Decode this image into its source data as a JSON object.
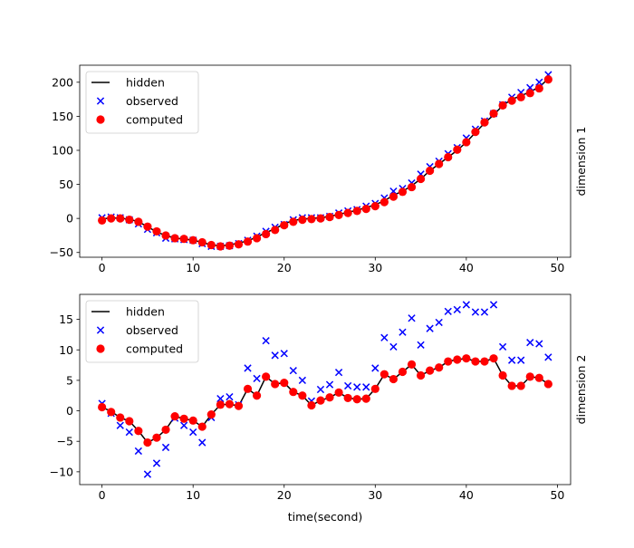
{
  "chart_data": [
    {
      "type": "scatter",
      "panel": "dimension 1",
      "ylabel": "dimension 1",
      "xlabel": "",
      "xlim": [
        -2.45,
        51.45
      ],
      "ylim": [
        -57,
        225
      ],
      "xticks": [
        0,
        10,
        20,
        30,
        40,
        50
      ],
      "yticks": [
        -50,
        0,
        50,
        100,
        150,
        200
      ],
      "legend": [
        "hidden",
        "observed",
        "computed"
      ],
      "legend_position": "upper left",
      "x": [
        0,
        1,
        2,
        3,
        4,
        5,
        6,
        7,
        8,
        9,
        10,
        11,
        12,
        13,
        14,
        15,
        16,
        17,
        18,
        19,
        20,
        21,
        22,
        23,
        24,
        25,
        26,
        27,
        28,
        29,
        30,
        31,
        32,
        33,
        34,
        35,
        36,
        37,
        38,
        39,
        40,
        41,
        42,
        43,
        44,
        45,
        46,
        47,
        48,
        49
      ],
      "series": [
        {
          "name": "hidden",
          "style": "line",
          "color": "#000000",
          "values": [
            -1,
            1,
            0,
            -1,
            -5,
            -12,
            -20,
            -25,
            -29,
            -30,
            -32,
            -35,
            -39,
            -40,
            -39,
            -36,
            -33,
            -27,
            -21,
            -15,
            -8,
            -3,
            -1,
            0,
            1,
            3,
            6,
            9,
            12,
            16,
            20,
            26,
            34,
            40,
            48,
            58,
            70,
            80,
            90,
            100,
            112,
            126,
            140,
            152,
            166,
            175,
            180,
            186,
            193,
            205
          ]
        },
        {
          "name": "observed",
          "style": "x",
          "color": "#0000ff",
          "values": [
            1,
            2,
            1,
            -2,
            -8,
            -16,
            -21,
            -29,
            -30,
            -31,
            -32,
            -37,
            -41,
            -41,
            -40,
            -37,
            -32,
            -26,
            -19,
            -13,
            -9,
            -2,
            1,
            1,
            1,
            3,
            8,
            11,
            13,
            18,
            22,
            30,
            40,
            44,
            52,
            65,
            76,
            84,
            95,
            104,
            118,
            131,
            143,
            154,
            167,
            178,
            185,
            192,
            200,
            211
          ]
        },
        {
          "name": "computed",
          "style": "o",
          "color": "#ff0000",
          "values": [
            -3,
            0,
            0,
            -2,
            -5,
            -12,
            -19,
            -25,
            -29,
            -30,
            -32,
            -35,
            -39,
            -41,
            -40,
            -38,
            -34,
            -29,
            -23,
            -17,
            -10,
            -5,
            -2,
            -1,
            0,
            2,
            5,
            8,
            11,
            14,
            18,
            24,
            32,
            39,
            46,
            58,
            70,
            80,
            90,
            101,
            112,
            127,
            141,
            154,
            166,
            173,
            178,
            184,
            191,
            204
          ]
        }
      ]
    },
    {
      "type": "scatter",
      "panel": "dimension 2",
      "ylabel": "dimension 2",
      "xlabel": "time(second)",
      "xlim": [
        -2.45,
        51.45
      ],
      "ylim": [
        -12.1,
        19.1
      ],
      "xticks": [
        0,
        10,
        20,
        30,
        40,
        50
      ],
      "yticks": [
        -10,
        -5,
        0,
        5,
        10,
        15
      ],
      "legend": [
        "hidden",
        "observed",
        "computed"
      ],
      "legend_position": "upper left",
      "x": [
        0,
        1,
        2,
        3,
        4,
        5,
        6,
        7,
        8,
        9,
        10,
        11,
        12,
        13,
        14,
        15,
        16,
        17,
        18,
        19,
        20,
        21,
        22,
        23,
        24,
        25,
        26,
        27,
        28,
        29,
        30,
        31,
        32,
        33,
        34,
        35,
        36,
        37,
        38,
        39,
        40,
        41,
        42,
        43,
        44,
        45,
        46,
        47,
        48,
        49
      ],
      "series": [
        {
          "name": "hidden",
          "style": "line",
          "color": "#000000",
          "values": [
            0.6,
            -0.1,
            -1.1,
            -1.7,
            -3.3,
            -5.2,
            -4.4,
            -3.1,
            -0.9,
            -1.3,
            -1.6,
            -2.6,
            -0.6,
            1.0,
            1.1,
            0.8,
            3.6,
            2.5,
            5.6,
            4.4,
            4.6,
            3.1,
            2.5,
            0.9,
            1.7,
            2.2,
            3.0,
            2.1,
            1.9,
            2.0,
            3.6,
            6.0,
            5.2,
            6.4,
            7.6,
            5.8,
            6.6,
            7.1,
            8.1,
            8.4,
            8.6,
            8.1,
            8.1,
            8.6,
            5.8,
            4.1,
            4.1,
            5.6,
            5.4,
            4.4
          ]
        },
        {
          "name": "observed",
          "style": "x",
          "color": "#0000ff",
          "values": [
            1.2,
            -0.4,
            -2.4,
            -3.5,
            -6.6,
            -10.4,
            -8.6,
            -6.0,
            -1.2,
            -2.4,
            -3.5,
            -5.2,
            -1.1,
            2.0,
            2.3,
            1.0,
            7.0,
            5.3,
            11.5,
            9.1,
            9.4,
            6.6,
            5.0,
            1.6,
            3.5,
            4.3,
            6.3,
            4.1,
            3.9,
            3.9,
            7.0,
            12.0,
            10.5,
            12.9,
            15.2,
            10.8,
            13.5,
            14.5,
            16.3,
            16.6,
            17.4,
            16.2,
            16.2,
            17.4,
            10.5,
            8.3,
            8.3,
            11.2,
            11.0,
            8.8
          ]
        },
        {
          "name": "computed",
          "style": "o",
          "color": "#ff0000",
          "values": [
            0.6,
            -0.2,
            -1.1,
            -1.7,
            -3.3,
            -5.2,
            -4.4,
            -3.1,
            -0.9,
            -1.3,
            -1.6,
            -2.6,
            -0.6,
            1.0,
            1.1,
            0.8,
            3.6,
            2.5,
            5.6,
            4.4,
            4.6,
            3.1,
            2.5,
            0.9,
            1.7,
            2.2,
            3.0,
            2.1,
            1.9,
            2.0,
            3.6,
            6.0,
            5.2,
            6.4,
            7.6,
            5.8,
            6.6,
            7.1,
            8.1,
            8.4,
            8.6,
            8.1,
            8.1,
            8.6,
            5.8,
            4.1,
            4.1,
            5.6,
            5.4,
            4.4
          ]
        }
      ]
    }
  ]
}
